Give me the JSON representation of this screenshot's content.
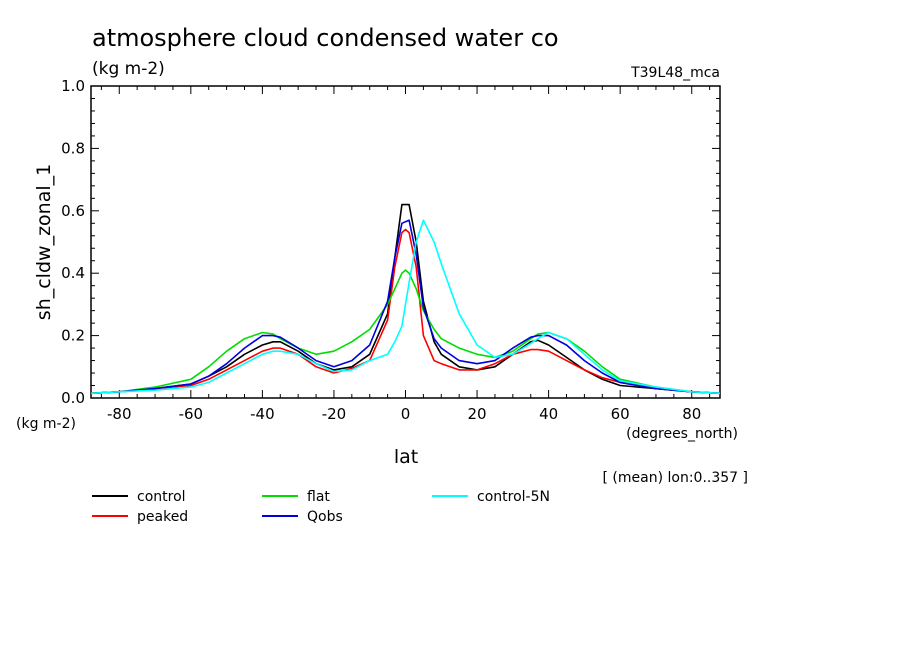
{
  "chart_data": {
    "type": "line",
    "title": "atmosphere cloud condensed water co",
    "units_label": "(kg m-2)",
    "model_label": "T39L48_mca",
    "ylabel": "sh_cldw_zonal_1",
    "xlabel": "lat",
    "y_units": "(kg m-2)",
    "x_units": "(degrees_north)",
    "footnote": "[ (mean) lon:0..357 ]",
    "xlim": [
      -87.9,
      87.9
    ],
    "ylim": [
      0.0,
      1.0
    ],
    "x_ticks": [
      -80,
      -60,
      -40,
      -20,
      0,
      20,
      40,
      60,
      80
    ],
    "x_tick_labels": [
      "-80",
      "-60",
      "-40",
      "-20",
      "0",
      "20",
      "40",
      "60",
      "80"
    ],
    "y_ticks": [
      0.0,
      0.2,
      0.4,
      0.6,
      0.8,
      1.0
    ],
    "y_tick_labels": [
      "0.0",
      "0.2",
      "0.4",
      "0.6",
      "0.8",
      "1.0"
    ],
    "grid": false,
    "legend_position": "bottom",
    "x": [
      -88,
      -80,
      -70,
      -60,
      -55,
      -50,
      -45,
      -40,
      -37,
      -35,
      -30,
      -25,
      -20,
      -15,
      -10,
      -5,
      -3,
      -1,
      0,
      1,
      3,
      5,
      8,
      10,
      15,
      20,
      25,
      30,
      35,
      37,
      40,
      45,
      50,
      55,
      60,
      70,
      80,
      88
    ],
    "series": [
      {
        "name": "control",
        "color": "#000000",
        "values": [
          0.015,
          0.02,
          0.03,
          0.045,
          0.07,
          0.1,
          0.14,
          0.17,
          0.18,
          0.18,
          0.15,
          0.11,
          0.09,
          0.1,
          0.14,
          0.27,
          0.45,
          0.62,
          0.62,
          0.62,
          0.5,
          0.31,
          0.18,
          0.14,
          0.1,
          0.09,
          0.1,
          0.14,
          0.18,
          0.185,
          0.17,
          0.13,
          0.09,
          0.06,
          0.04,
          0.03,
          0.02,
          0.015
        ]
      },
      {
        "name": "peaked",
        "color": "#ff0000",
        "values": [
          0.015,
          0.02,
          0.03,
          0.04,
          0.06,
          0.09,
          0.12,
          0.15,
          0.16,
          0.16,
          0.14,
          0.1,
          0.08,
          0.095,
          0.12,
          0.25,
          0.42,
          0.53,
          0.54,
          0.53,
          0.42,
          0.2,
          0.12,
          0.11,
          0.09,
          0.09,
          0.11,
          0.14,
          0.155,
          0.155,
          0.15,
          0.12,
          0.09,
          0.065,
          0.05,
          0.03,
          0.02,
          0.015
        ]
      },
      {
        "name": "flat",
        "color": "#00dd00",
        "values": [
          0.015,
          0.02,
          0.035,
          0.06,
          0.1,
          0.15,
          0.19,
          0.21,
          0.205,
          0.19,
          0.16,
          0.14,
          0.15,
          0.18,
          0.22,
          0.3,
          0.35,
          0.4,
          0.41,
          0.4,
          0.35,
          0.28,
          0.22,
          0.19,
          0.16,
          0.14,
          0.13,
          0.15,
          0.19,
          0.205,
          0.21,
          0.19,
          0.15,
          0.1,
          0.06,
          0.035,
          0.02,
          0.015
        ]
      },
      {
        "name": "Qobs",
        "color": "#0000dd",
        "values": [
          0.015,
          0.02,
          0.03,
          0.045,
          0.07,
          0.11,
          0.16,
          0.2,
          0.2,
          0.195,
          0.16,
          0.12,
          0.1,
          0.12,
          0.17,
          0.31,
          0.45,
          0.56,
          0.565,
          0.57,
          0.46,
          0.29,
          0.19,
          0.16,
          0.12,
          0.11,
          0.12,
          0.16,
          0.195,
          0.2,
          0.2,
          0.17,
          0.12,
          0.08,
          0.05,
          0.03,
          0.02,
          0.015
        ]
      },
      {
        "name": "control-5N",
        "color": "#00ffff",
        "values": [
          0.015,
          0.02,
          0.025,
          0.035,
          0.05,
          0.08,
          0.11,
          0.14,
          0.15,
          0.15,
          0.14,
          0.11,
          0.085,
          0.09,
          0.12,
          0.14,
          0.18,
          0.23,
          0.3,
          0.37,
          0.5,
          0.57,
          0.5,
          0.43,
          0.27,
          0.17,
          0.13,
          0.14,
          0.175,
          0.19,
          0.21,
          0.19,
          0.14,
          0.09,
          0.055,
          0.035,
          0.02,
          0.015
        ]
      }
    ]
  }
}
